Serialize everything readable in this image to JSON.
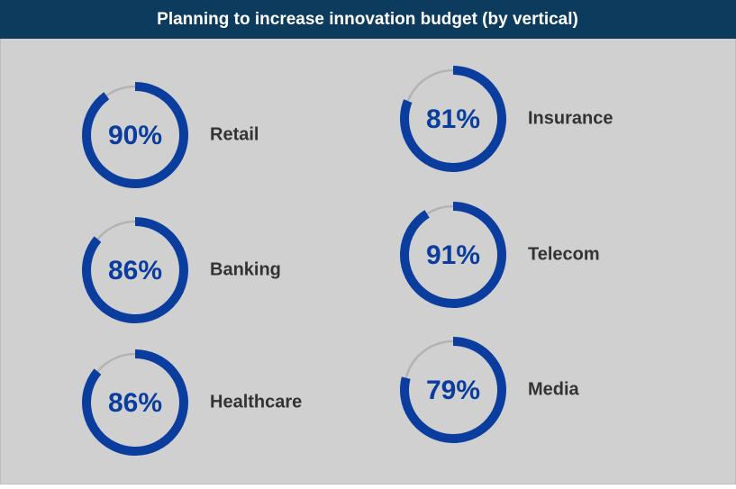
{
  "chart_data": {
    "type": "progress-ring",
    "title": "Planning to increase innovation budget (by vertical)",
    "categories": [
      "Retail",
      "Banking",
      "Healthcare",
      "Insurance",
      "Telecom",
      "Media"
    ],
    "values": [
      90,
      86,
      86,
      81,
      91,
      79
    ],
    "value_labels": [
      "90%",
      "86%",
      "86%",
      "81%",
      "91%",
      "79%"
    ],
    "ylim": [
      0,
      100
    ],
    "color": "#0a3d9e",
    "track_color": "#b3b3b3"
  }
}
